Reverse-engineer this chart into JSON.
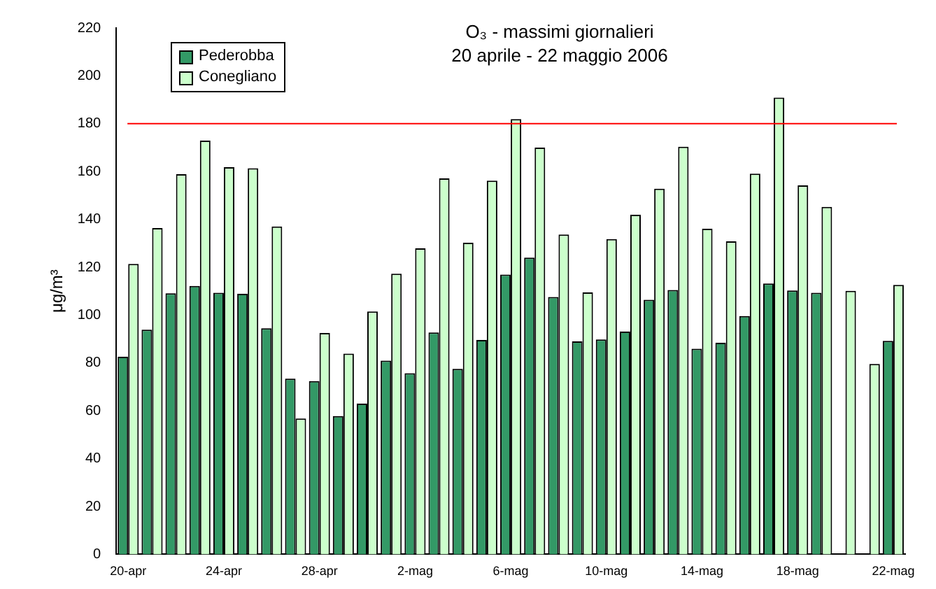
{
  "chart_data": {
    "type": "bar",
    "title": "O₃ - massimi giornalieri",
    "subtitle": "20 aprile - 22 maggio 2006",
    "ylabel": "μg/m³",
    "categories": [
      "20-apr",
      null,
      null,
      null,
      "24-apr",
      null,
      null,
      null,
      "28-apr",
      null,
      null,
      null,
      "2-mag",
      null,
      null,
      null,
      "6-mag",
      null,
      null,
      null,
      "10-mag",
      null,
      null,
      null,
      "14-mag",
      null,
      null,
      null,
      "18-mag",
      null,
      null,
      null,
      "22-mag"
    ],
    "series": [
      {
        "name": "Pederobba",
        "color": "#339966",
        "values": [
          82.6,
          93.9,
          109.1,
          112.2,
          109.3,
          108.9,
          94.5,
          73.4,
          72.4,
          57.8,
          63,
          81,
          75.7,
          92.7,
          77.5,
          89.6,
          116.9,
          124,
          107.6,
          89,
          89.8,
          93.1,
          106.4,
          110.5,
          85.9,
          88.4,
          99.6,
          113.2,
          110.3,
          109.3,
          null,
          null,
          89.2
        ]
      },
      {
        "name": "Conegliano",
        "color": "#ccffcc",
        "values": [
          121.4,
          136.4,
          158.9,
          172.9,
          161.8,
          161.4,
          137,
          56.8,
          92.5,
          83.9,
          101.5,
          117.3,
          127.9,
          157.1,
          130.2,
          156.2,
          181.9,
          170,
          133.7,
          109.5,
          131.8,
          141.9,
          152.8,
          170.4,
          136.1,
          130.8,
          159.1,
          190.9,
          154.2,
          145.2,
          110.1,
          79.6,
          112.6
        ]
      }
    ],
    "ylim": [
      0,
      220
    ],
    "yticks": [
      0,
      20,
      40,
      60,
      80,
      100,
      120,
      140,
      160,
      180,
      200,
      220
    ],
    "ref_lines": [
      {
        "axis": "y",
        "value": 180,
        "color": "#ff0000"
      }
    ],
    "grid": false,
    "legend": "top left"
  }
}
